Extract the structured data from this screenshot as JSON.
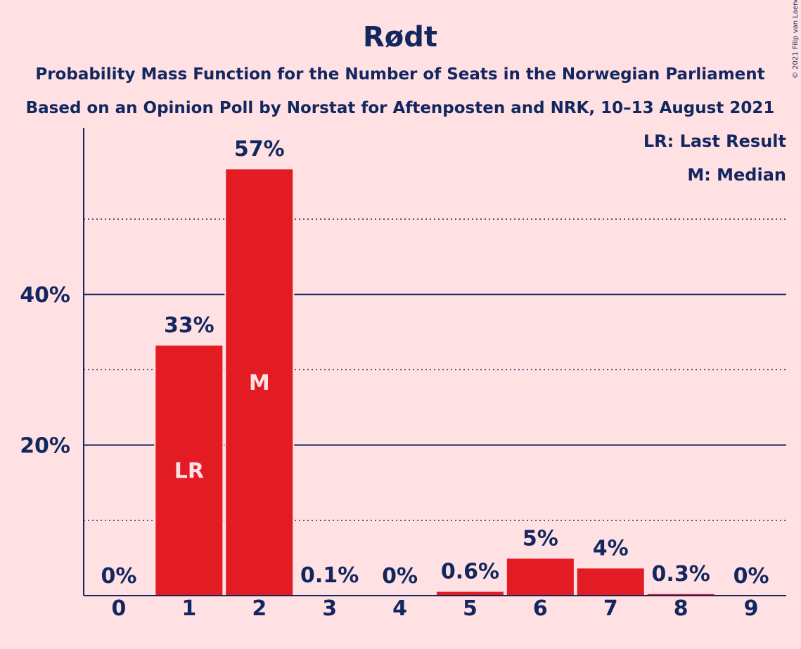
{
  "chart_data": {
    "type": "bar",
    "title": "Rødt",
    "subtitle_lines": [
      "Probability Mass Function for the Number of Seats in the Norwegian Parliament",
      "Based on an Opinion Poll by Norstat for Aftenposten and NRK, 10–13 August 2021"
    ],
    "categories": [
      "0",
      "1",
      "2",
      "3",
      "4",
      "5",
      "6",
      "7",
      "8",
      "9"
    ],
    "values": [
      0,
      33.3,
      56.7,
      0.1,
      0,
      0.6,
      5,
      3.7,
      0.3,
      0
    ],
    "value_labels": [
      "0%",
      "33%",
      "57%",
      "0.1%",
      "0%",
      "0.6%",
      "5%",
      "4%",
      "0.3%",
      "0%"
    ],
    "markers": [
      {
        "category": "1",
        "label": "LR"
      },
      {
        "category": "2",
        "label": "M"
      }
    ],
    "legend": [
      "LR: Last Result",
      "M: Median"
    ],
    "legend_position": "top-right",
    "yticks": [
      {
        "value": 20,
        "label": "20%"
      },
      {
        "value": 40,
        "label": "40%"
      }
    ],
    "minor_gridlines": [
      10,
      30,
      50
    ],
    "ylim": [
      0,
      62
    ],
    "xlabel": "",
    "ylabel": "",
    "grid": true
  },
  "colors": {
    "background": "#FFE1E4",
    "bar": "#E31B23",
    "text": "#12275F",
    "marker_text": "#FFE1E4"
  },
  "copyright": "© 2021 Filip van Laenen"
}
